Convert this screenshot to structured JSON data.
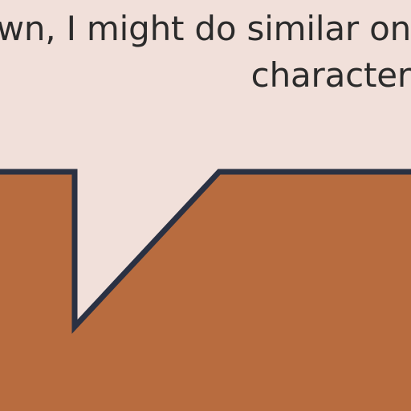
{
  "speech_bubble": {
    "lines": [
      "wn, I might do similar on",
      "character"
    ]
  },
  "colors": {
    "background": "#f1e0da",
    "panel_fill": "#b86c3f",
    "outline": "#2a3143",
    "text": "#2b2b2b"
  }
}
